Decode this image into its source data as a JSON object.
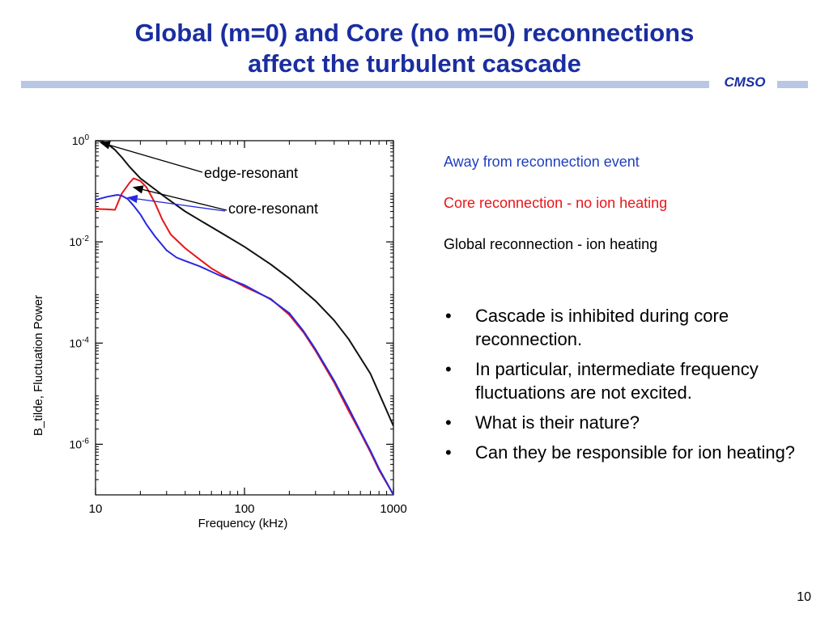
{
  "slide": {
    "title_line1": "Global (m=0) and Core (no m=0) reconnections",
    "title_line2": "affect the turbulent cascade",
    "logo_text": "CMSO",
    "page_number": "10",
    "title_color": "#1a2ea0",
    "rule_color": "#b9c6e4"
  },
  "legend": {
    "away": {
      "text": "Away from reconnection event",
      "color": "#1f3fbf"
    },
    "core": {
      "text": "Core reconnection - no ion heating",
      "color": "#e8161a"
    },
    "global": {
      "text": "Global reconnection - ion heating",
      "color": "#000000"
    }
  },
  "bullets": [
    "Cascade is inhibited during core reconnection.",
    "In particular, intermediate frequency fluctuations are not excited.",
    "What is their nature?",
    "Can they be responsible for ion heating?"
  ],
  "bullet_symbol": "•",
  "chart_data": {
    "type": "line",
    "xlabel": "Frequency (kHz)",
    "ylabel": "B_tilde, Fluctuation Power",
    "x_scale": "log",
    "y_scale": "log",
    "xlim": [
      10,
      1000
    ],
    "ylim": [
      1e-07,
      1
    ],
    "x_ticks": [
      {
        "value": 10,
        "label": "10"
      },
      {
        "value": 100,
        "label": "100"
      },
      {
        "value": 1000,
        "label": "1000"
      }
    ],
    "y_ticks": [
      {
        "value": 1,
        "base": "10",
        "exp": "0"
      },
      {
        "value": 0.01,
        "base": "10",
        "exp": "-2"
      },
      {
        "value": 0.0001,
        "base": "10",
        "exp": "-4"
      },
      {
        "value": 1e-06,
        "base": "10",
        "exp": "-6"
      }
    ],
    "series": [
      {
        "color": "#111111",
        "x": [
          10,
          11,
          12,
          13.5,
          15,
          17,
          20,
          25,
          30,
          40,
          50,
          70,
          100,
          150,
          200,
          300,
          400,
          500,
          700,
          1000
        ],
        "y": [
          1.0,
          0.98,
          0.87,
          0.66,
          0.47,
          0.3,
          0.18,
          0.11,
          0.073,
          0.04,
          0.027,
          0.015,
          0.008,
          0.0036,
          0.0019,
          0.00068,
          0.00028,
          0.00012,
          2.5e-05,
          2.3e-06
        ]
      },
      {
        "color": "#e8161a",
        "x": [
          10,
          12,
          13.5,
          15,
          17,
          18,
          20,
          22,
          25,
          28,
          32,
          40,
          50,
          60,
          70,
          100,
          150,
          200,
          250,
          300,
          400,
          500,
          600,
          700,
          800,
          1000
        ],
        "y": [
          0.045,
          0.044,
          0.043,
          0.09,
          0.15,
          0.18,
          0.16,
          0.12,
          0.06,
          0.028,
          0.014,
          0.0075,
          0.0045,
          0.003,
          0.0023,
          0.0013,
          0.00075,
          0.00036,
          0.00016,
          7e-05,
          1.65e-05,
          4.6e-06,
          1.7e-06,
          7e-07,
          3.1e-07,
          1e-07
        ]
      },
      {
        "color": "#2828e0",
        "x": [
          10,
          12,
          14,
          15,
          16.5,
          18,
          20,
          22,
          25,
          30,
          35,
          40,
          50,
          70,
          100,
          150,
          200,
          250,
          300,
          400,
          500,
          600,
          700,
          800,
          1000
        ],
        "y": [
          0.068,
          0.078,
          0.085,
          0.082,
          0.07,
          0.052,
          0.035,
          0.022,
          0.013,
          0.0068,
          0.0049,
          0.0042,
          0.0033,
          0.0021,
          0.0014,
          0.00073,
          0.00039,
          0.00017,
          7.5e-05,
          1.8e-05,
          5.2e-06,
          1.8e-06,
          7.5e-07,
          3.3e-07,
          1e-07
        ]
      }
    ],
    "annotations": [
      {
        "text": "edge-resonant",
        "x": 10.8,
        "y": 0.92,
        "color": "#000000"
      },
      {
        "text": "core-resonant",
        "x": 18,
        "y": 0.12,
        "color": "#000000"
      },
      {
        "text": "core-resonant",
        "x": 16.5,
        "y": 0.075,
        "color": "#2828e0"
      }
    ]
  }
}
